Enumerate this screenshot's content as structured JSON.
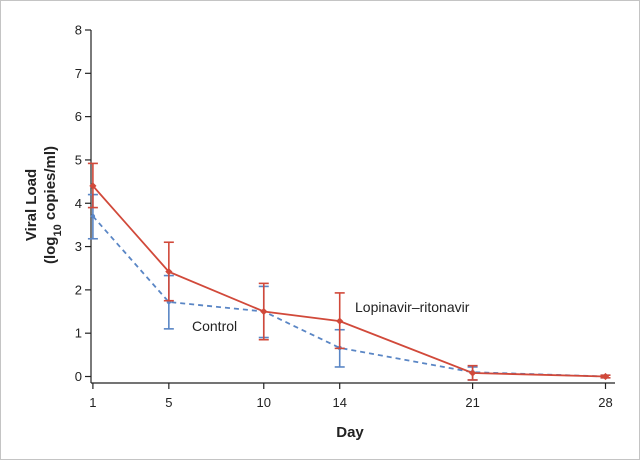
{
  "chart_data": {
    "type": "line",
    "xlabel": "Day",
    "ylabel_main": "Viral Load",
    "ylabel_unit_prefix": "(log",
    "ylabel_unit_sub": "10",
    "ylabel_unit_suffix": " copies/ml)",
    "x_ticks": [
      1,
      5,
      10,
      14,
      21,
      28
    ],
    "x_tick_labels": [
      "1",
      "5",
      "10",
      "14",
      "21",
      "28"
    ],
    "y_ticks": [
      0,
      1,
      2,
      3,
      4,
      5,
      6,
      7,
      8
    ],
    "y_tick_labels": [
      "0",
      "1",
      "2",
      "3",
      "4",
      "5",
      "6",
      "7",
      "8"
    ],
    "xlim": [
      0.9,
      28.5
    ],
    "ylim": [
      -0.15,
      8
    ],
    "grid": false,
    "series": [
      {
        "name": "Lopinavir–ritonavir",
        "color": "#d1493a",
        "style": "solid",
        "x": [
          1,
          5,
          10,
          14,
          21,
          28
        ],
        "y": [
          4.4,
          2.42,
          1.5,
          1.28,
          0.08,
          0.0
        ],
        "err_low": [
          3.9,
          1.75,
          0.85,
          0.65,
          -0.08,
          -0.03
        ],
        "err_high": [
          4.92,
          3.1,
          2.15,
          1.93,
          0.25,
          0.03
        ]
      },
      {
        "name": "Control",
        "color": "#5a86c5",
        "style": "dashed",
        "x": [
          1,
          5,
          10,
          14,
          21,
          28
        ],
        "y": [
          3.7,
          1.72,
          1.5,
          0.66,
          0.1,
          0.0
        ],
        "err_low": [
          3.18,
          1.1,
          0.9,
          0.22,
          -0.08,
          -0.03
        ],
        "err_high": [
          4.2,
          2.33,
          2.08,
          1.08,
          0.22,
          0.03
        ]
      }
    ]
  }
}
